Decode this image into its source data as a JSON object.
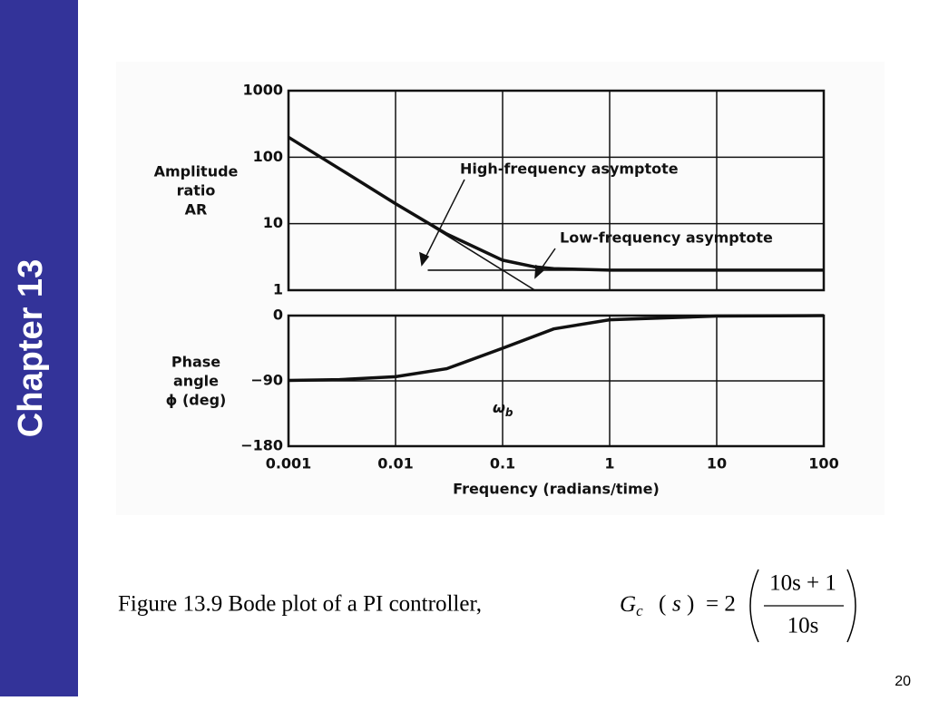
{
  "sidebar_label": "Chapter 13",
  "chart_data": [
    {
      "type": "line",
      "log_x": true,
      "log_y": true,
      "grid": true,
      "ylabel": [
        "Amplitude",
        "ratio",
        "AR"
      ],
      "xlim": [
        0.001,
        100
      ],
      "ylim": [
        1,
        1000
      ],
      "yticks": [
        1,
        10,
        100,
        1000
      ],
      "series": [
        {
          "color": "#111111",
          "x": [
            0.001,
            0.003,
            0.01,
            0.03,
            0.1,
            0.2,
            0.3,
            1,
            10,
            100
          ],
          "values": [
            200,
            66.7,
            20,
            7,
            2.83,
            2.24,
            2.11,
            2,
            2,
            2
          ]
        },
        {
          "color": "#111111",
          "x": [
            0.02,
            100
          ],
          "values": [
            2,
            2
          ]
        },
        {
          "color": "#111111",
          "x": [
            0.001,
            0.2
          ],
          "values": [
            200,
            1
          ]
        }
      ],
      "annotations": [
        "High-frequency asymptote",
        "Low-frequency asymptote"
      ]
    },
    {
      "type": "line",
      "log_x": true,
      "grid": true,
      "ylabel": [
        "Phase",
        "angle",
        "ϕ (deg)"
      ],
      "xlabel": "Frequency (radians/time)",
      "xlim": [
        0.001,
        100
      ],
      "xticks": [
        0.001,
        0.01,
        0.1,
        1,
        10,
        100
      ],
      "ylim": [
        -180,
        0
      ],
      "yticks": [
        0,
        {
          "value": -90,
          "label": "−90"
        },
        {
          "value": -180,
          "label": "−180"
        }
      ],
      "series": [
        {
          "color": "#111111",
          "x": [
            0.001,
            0.003,
            0.01,
            0.03,
            0.1,
            0.3,
            1,
            10,
            100
          ],
          "values": [
            -89.4,
            -88.3,
            -84.3,
            -73.3,
            -45,
            -18.4,
            -5.7,
            -0.6,
            0
          ]
        }
      ],
      "annotations": [
        {
          "text": "ω",
          "subscript": "b"
        }
      ]
    }
  ],
  "caption": {
    "text": "Figure 13.9 Bode plot of a PI controller,",
    "lhs": "G",
    "lhs_sub": "c",
    "arg": "s",
    "coef": "= 2",
    "numerator": "10s + 1",
    "denominator": "10s"
  },
  "page_number": "20"
}
